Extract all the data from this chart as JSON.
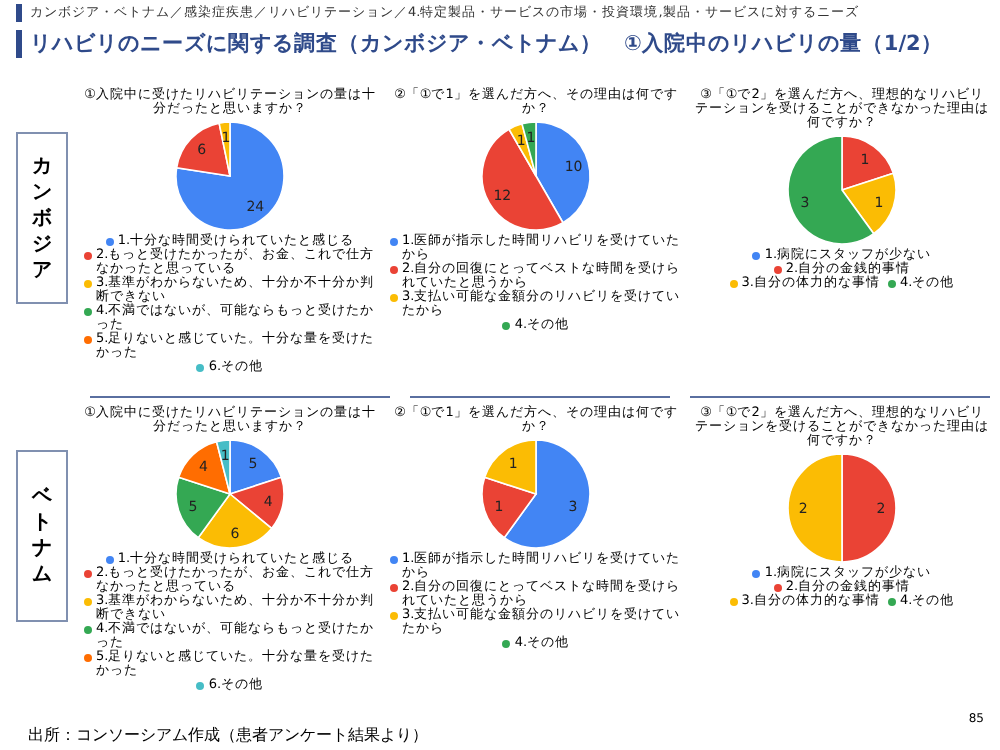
{
  "chart_data": [
    {
      "type": "pie",
      "title": "①入院中に受けたリハビリテーションの量は十分だったと思いますか？",
      "categories": [
        "1.十分な時間受けられていたと感じる",
        "2.もっと受けたかったが、お金、これで仕方なかったと思っている",
        "3.基準がわからないため、十分か不十分か判断できない",
        "4.不満ではないが、可能ならもっと受けたかった",
        "5.足りないと感じていた。十分な量を受けたかった",
        "6.その他"
      ],
      "values": [
        24,
        6,
        1,
        0,
        0,
        0
      ],
      "colors": [
        "#4285f4",
        "#ea4335",
        "#fbbc04",
        "#34a853",
        "#ff6d01",
        "#46bdc6"
      ],
      "value_labels": [
        "24",
        "6",
        "1",
        null,
        null,
        null
      ],
      "legend": "bottom",
      "annotations": [
        "カンボジア・ベトナム／感染症疾患／リハビリテーション／4.特定製品・サービスの市場・投資環境,製品・サービスに対するニーズ",
        "リハビリのニーズに関する調査（カンボジア・ベトナム）　①入院中のリハビリの量（1/2）",
        "カンボジア"
      ]
    },
    {
      "type": "pie",
      "title": "②「①で1」を選んだ方へ、その理由は何ですか？",
      "categories": [
        "1.医師が指示した時間リハビリを受けていたから",
        "2.自分の回復にとってベストな時間を受けられていたと思うから",
        "3.支払い可能な金額分のリハビリを受けていたから",
        "4.その他"
      ],
      "values": [
        10,
        12,
        1,
        1
      ],
      "colors": [
        "#4285f4",
        "#ea4335",
        "#fbbc04",
        "#34a853"
      ],
      "value_labels": [
        "10",
        "12",
        "1",
        "1"
      ],
      "legend": "bottom"
    },
    {
      "type": "pie",
      "title": "③「①で2」を選んだ方へ、理想的なリハビリテーションを受けることができなかった理由は何ですか？",
      "categories": [
        "1.病院にスタッフが少ない",
        "2.自分の金銭的事情",
        "3.自分の体力的な事情",
        "4.その他"
      ],
      "values": [
        0,
        1,
        1,
        3
      ],
      "colors": [
        "#4285f4",
        "#ea4335",
        "#fbbc04",
        "#34a853"
      ],
      "value_labels": [
        null,
        "1",
        "1",
        "3"
      ],
      "legend": "bottom"
    },
    {
      "type": "pie",
      "title": "①入院中に受けたリハビリテーションの量は十分だったと思いますか？",
      "categories": [
        "1.十分な時間受けられていたと感じる",
        "2.もっと受けたかったが、お金、これで仕方なかったと思っている",
        "3.基準がわからないため、十分か不十分か判断できない",
        "4.不満ではないが、可能ならもっと受けたかった",
        "5.足りないと感じていた。十分な量を受けたかった",
        "6.その他"
      ],
      "values": [
        5,
        4,
        6,
        5,
        4,
        1
      ],
      "colors": [
        "#4285f4",
        "#ea4335",
        "#fbbc04",
        "#34a853",
        "#ff6d01",
        "#46bdc6"
      ],
      "value_labels": [
        "5",
        "4",
        "6",
        "5",
        "4",
        "1"
      ],
      "legend": "bottom",
      "annotations": [
        "ベトナム"
      ]
    },
    {
      "type": "pie",
      "title": "②「①で1」を選んだ方へ、その理由は何ですか？",
      "categories": [
        "1.医師が指示した時間リハビリを受けていたから",
        "2.自分の回復にとってベストな時間を受けられていたと思うから",
        "3.支払い可能な金額分のリハビリを受けていたから",
        "4.その他"
      ],
      "values": [
        3,
        1,
        1,
        0
      ],
      "colors": [
        "#4285f4",
        "#ea4335",
        "#fbbc04",
        "#34a853"
      ],
      "value_labels": [
        "3",
        "1",
        "1",
        null
      ],
      "legend": "bottom"
    },
    {
      "type": "pie",
      "title": "③「①で2」を選んだ方へ、理想的なリハビリテーションを受けることができなかった理由は何ですか？",
      "categories": [
        "1.病院にスタッフが少ない",
        "2.自分の金銭的事情",
        "3.自分の体力的な事情",
        "4.その他"
      ],
      "values": [
        0,
        2,
        2,
        0
      ],
      "colors": [
        "#4285f4",
        "#ea4335",
        "#fbbc04",
        "#34a853"
      ],
      "value_labels": [
        null,
        "2",
        "2",
        null
      ],
      "legend": "bottom",
      "annotations": [
        "出所：コンソーシアム作成（患者アンケート結果より）",
        "85"
      ]
    }
  ]
}
